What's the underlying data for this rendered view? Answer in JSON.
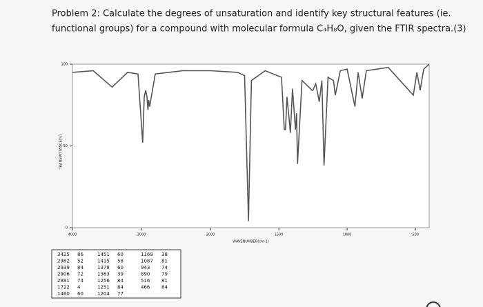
{
  "problem": {
    "lines": [
      "Problem 2: Calculate the degrees of unsaturation and identify key structural features (ie.",
      "functional groups) for a compound with molecular formula C₄H₈O, given the FTIR spectra.(3)"
    ]
  },
  "chart_data": {
    "type": "line",
    "x_label": "WAVENUMBER(cm-1)",
    "y_label": "TRANSMITTANCE(%)",
    "x": [
      4000,
      3700,
      3425,
      3200,
      3050,
      2982,
      2960,
      2939,
      2920,
      2906,
      2895,
      2881,
      2800,
      2400,
      2000,
      1800,
      1750,
      1722,
      1700,
      1600,
      1480,
      1460,
      1451,
      1440,
      1415,
      1400,
      1378,
      1370,
      1363,
      1330,
      1256,
      1251,
      1230,
      1204,
      1185,
      1169,
      1140,
      1100,
      1087,
      1050,
      1000,
      943,
      920,
      890,
      860,
      700,
      516,
      490,
      466,
      440,
      400
    ],
    "series": [
      {
        "name": "spectrum",
        "color": "#555555",
        "values": [
          95,
          96,
          86,
          95,
          94,
          52,
          80,
          84,
          80,
          72,
          78,
          74,
          94,
          96,
          96,
          95,
          93,
          4,
          90,
          96,
          92,
          60,
          60,
          80,
          58,
          85,
          60,
          70,
          39,
          90,
          84,
          84,
          88,
          77,
          90,
          38,
          92,
          90,
          81,
          96,
          97,
          74,
          95,
          79,
          96,
          98,
          81,
          95,
          84,
          97,
          100
        ]
      }
    ],
    "xlim": [
      4000,
      400
    ],
    "ylim": [
      0,
      100
    ],
    "xticks": [
      4000,
      3000,
      2000,
      1500,
      1000,
      500
    ],
    "yticks": [
      0,
      50,
      100
    ]
  },
  "table": {
    "rows": [
      [
        3425,
        86,
        1451,
        60,
        1169,
        38
      ],
      [
        2982,
        52,
        1415,
        58,
        1087,
        81
      ],
      [
        2939,
        84,
        1378,
        60,
        943,
        74
      ],
      [
        2906,
        72,
        1363,
        39,
        890,
        79
      ],
      [
        2881,
        74,
        1256,
        84,
        516,
        81
      ],
      [
        1722,
        4,
        1251,
        84,
        466,
        84
      ],
      [
        1460,
        60,
        1204,
        77
      ]
    ]
  }
}
